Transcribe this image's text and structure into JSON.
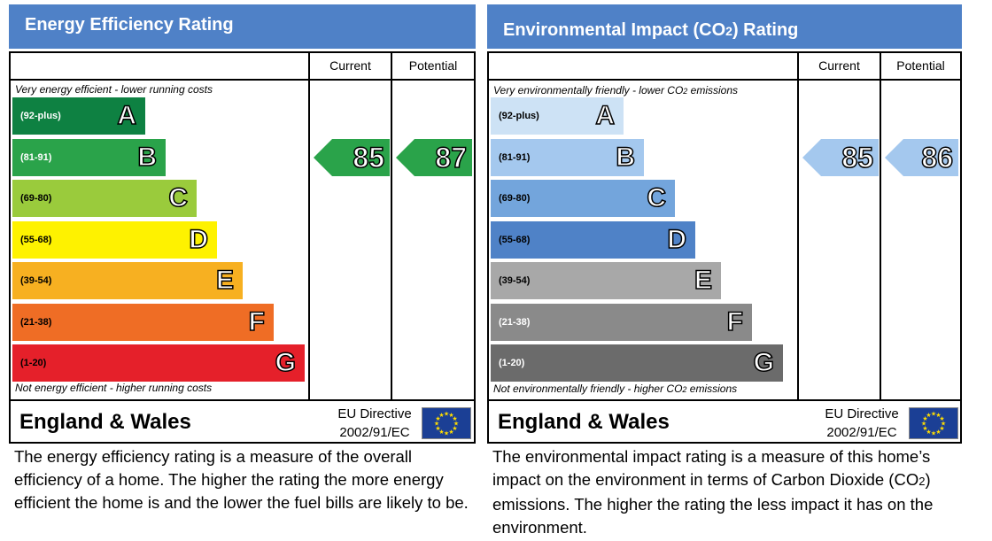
{
  "panels": [
    {
      "id": "energy",
      "title": "Energy Efficiency Rating",
      "column_current": "Current",
      "column_potential": "Potential",
      "top_label": "Very energy efficient - lower running costs",
      "bottom_label": "Not energy efficient - higher running costs",
      "region": "England & Wales",
      "directive_line1": "EU Directive",
      "directive_line2": "2002/91/EC",
      "description": "The energy efficiency rating is a measure of the overall efficiency of a home. The higher the rating the more energy efficient the home is and the lower the fuel bills are likely to be.",
      "bands": [
        {
          "range": "(92-plus)",
          "letter": "A",
          "color": "#0e8142",
          "text_color": "#ffffff"
        },
        {
          "range": "(81-91)",
          "letter": "B",
          "color": "#2aa34a",
          "text_color": "#ffffff"
        },
        {
          "range": "(69-80)",
          "letter": "C",
          "color": "#9acb3c",
          "text_color": "#000000"
        },
        {
          "range": "(55-68)",
          "letter": "D",
          "color": "#fef200",
          "text_color": "#000000"
        },
        {
          "range": "(39-54)",
          "letter": "E",
          "color": "#f7b021",
          "text_color": "#000000"
        },
        {
          "range": "(21-38)",
          "letter": "F",
          "color": "#ef6d25",
          "text_color": "#000000"
        },
        {
          "range": "(1-20)",
          "letter": "G",
          "color": "#e5202a",
          "text_color": "#000000"
        }
      ],
      "current": {
        "value": "85",
        "band": "B",
        "color": "#2aa34a"
      },
      "potential": {
        "value": "87",
        "band": "B",
        "color": "#2aa34a"
      }
    },
    {
      "id": "environment",
      "title": "Environmental Impact (CO2) Rating",
      "column_current": "Current",
      "column_potential": "Potential",
      "top_label": "Very environmentally friendly - lower CO2 emissions",
      "bottom_label": "Not environmentally friendly - higher CO2 emissions",
      "region": "England & Wales",
      "directive_line1": "EU Directive",
      "directive_line2": "2002/91/EC",
      "description": "The environmental impact rating is a measure of this home’s impact on the environment in terms of Carbon Dioxide (CO2) emissions. The higher the rating the less impact it has on the environment.",
      "bands": [
        {
          "range": "(92-plus)",
          "letter": "A",
          "color": "#cde2f5",
          "text_color": "#000000"
        },
        {
          "range": "(81-91)",
          "letter": "B",
          "color": "#a4c8ee",
          "text_color": "#000000"
        },
        {
          "range": "(69-80)",
          "letter": "C",
          "color": "#73a5dc",
          "text_color": "#000000"
        },
        {
          "range": "(55-68)",
          "letter": "D",
          "color": "#4f82c7",
          "text_color": "#000000"
        },
        {
          "range": "(39-54)",
          "letter": "E",
          "color": "#a8a8a8",
          "text_color": "#000000"
        },
        {
          "range": "(21-38)",
          "letter": "F",
          "color": "#8a8a8a",
          "text_color": "#ffffff"
        },
        {
          "range": "(1-20)",
          "letter": "G",
          "color": "#6b6b6b",
          "text_color": "#ffffff"
        }
      ],
      "current": {
        "value": "85",
        "band": "B",
        "color": "#a4c8ee"
      },
      "potential": {
        "value": "86",
        "band": "B",
        "color": "#a4c8ee"
      }
    }
  ],
  "chart_data": [
    {
      "type": "table",
      "title": "Energy Efficiency Rating",
      "categories": [
        "A",
        "B",
        "C",
        "D",
        "E",
        "F",
        "G"
      ],
      "ranges": [
        "(92-plus)",
        "(81-91)",
        "(69-80)",
        "(55-68)",
        "(39-54)",
        "(21-38)",
        "(1-20)"
      ],
      "current": 85,
      "potential": 87
    },
    {
      "type": "table",
      "title": "Environmental Impact (CO2) Rating",
      "categories": [
        "A",
        "B",
        "C",
        "D",
        "E",
        "F",
        "G"
      ],
      "ranges": [
        "(92-plus)",
        "(81-91)",
        "(69-80)",
        "(55-68)",
        "(39-54)",
        "(21-38)",
        "(1-20)"
      ],
      "current": 85,
      "potential": 86
    }
  ]
}
